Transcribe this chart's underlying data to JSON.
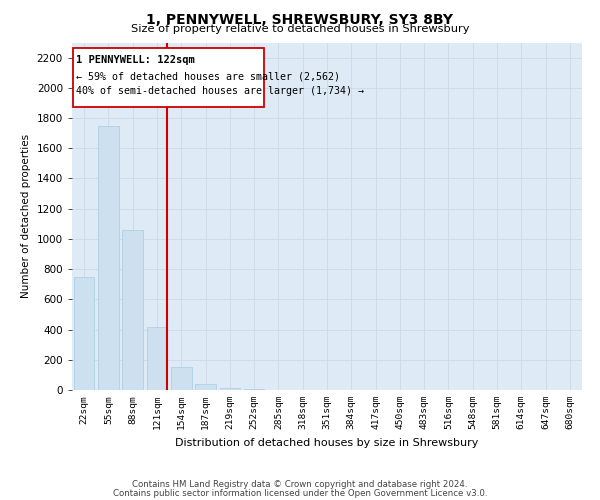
{
  "title": "1, PENNYWELL, SHREWSBURY, SY3 8BY",
  "subtitle": "Size of property relative to detached houses in Shrewsbury",
  "xlabel": "Distribution of detached houses by size in Shrewsbury",
  "ylabel": "Number of detached properties",
  "annotation_line1": "1 PENNYWELL: 122sqm",
  "annotation_line2": "← 59% of detached houses are smaller (2,562)",
  "annotation_line3": "40% of semi-detached houses are larger (1,734) →",
  "footnote1": "Contains HM Land Registry data © Crown copyright and database right 2024.",
  "footnote2": "Contains public sector information licensed under the Open Government Licence v3.0.",
  "categories": [
    "22sqm",
    "55sqm",
    "88sqm",
    "121sqm",
    "154sqm",
    "187sqm",
    "219sqm",
    "252sqm",
    "285sqm",
    "318sqm",
    "351sqm",
    "384sqm",
    "417sqm",
    "450sqm",
    "483sqm",
    "516sqm",
    "548sqm",
    "581sqm",
    "614sqm",
    "647sqm",
    "680sqm"
  ],
  "values": [
    750,
    1750,
    1060,
    420,
    150,
    40,
    10,
    5,
    3,
    2,
    1,
    1,
    0,
    0,
    0,
    0,
    0,
    0,
    0,
    0,
    0
  ],
  "bar_color": "#cce0f0",
  "bar_edge_color": "#aaccdd",
  "highlight_index": 3,
  "highlight_color": "#cc0000",
  "ylim": [
    0,
    2300
  ],
  "yticks": [
    0,
    200,
    400,
    600,
    800,
    1000,
    1200,
    1400,
    1600,
    1800,
    2000,
    2200
  ],
  "background_color": "#ffffff",
  "grid_color": "#ccd9e8",
  "annotation_box_edge": "#cc0000"
}
